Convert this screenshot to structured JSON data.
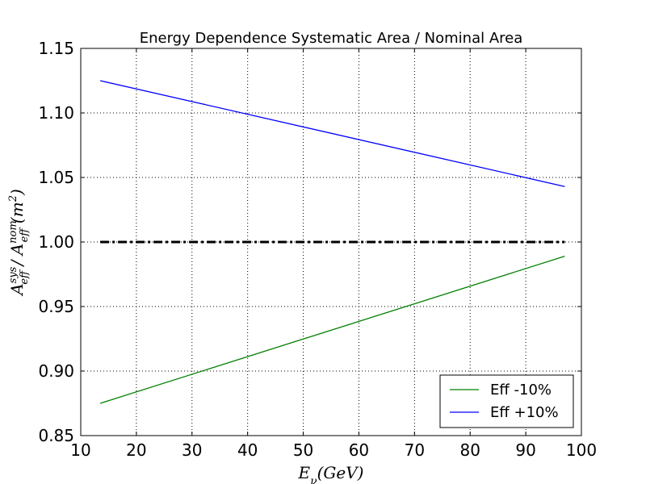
{
  "chart_data": {
    "type": "line",
    "title": "Energy Dependence Systematic Area / Nominal Area",
    "xlabel": "E_ν(GeV)",
    "ylabel": "A_eff^sys / A_eff^nom (m^2)",
    "xlim": [
      10,
      100
    ],
    "ylim": [
      0.85,
      1.15
    ],
    "xticks": [
      10,
      20,
      30,
      40,
      50,
      60,
      70,
      80,
      90,
      100
    ],
    "yticks": [
      0.85,
      0.9,
      0.95,
      1.0,
      1.05,
      1.1,
      1.15
    ],
    "xtick_labels": [
      "10",
      "20",
      "30",
      "40",
      "50",
      "60",
      "70",
      "80",
      "90",
      "100"
    ],
    "ytick_labels": [
      "0.85",
      "0.90",
      "0.95",
      "1.00",
      "1.05",
      "1.10",
      "1.15"
    ],
    "grid": true,
    "legend_position": "lower-right",
    "series": [
      {
        "name": "Eff -10%",
        "color": "#008000",
        "x": [
          13.5,
          97.0
        ],
        "y": [
          0.875,
          0.989
        ]
      },
      {
        "name": "Eff +10%",
        "color": "#0000ff",
        "x": [
          13.5,
          97.0
        ],
        "y": [
          1.125,
          1.043
        ]
      }
    ],
    "reference_line": {
      "style": "dash-dot",
      "color": "#000000",
      "x": [
        13.5,
        97.0
      ],
      "y": [
        1.0,
        1.0
      ]
    }
  }
}
